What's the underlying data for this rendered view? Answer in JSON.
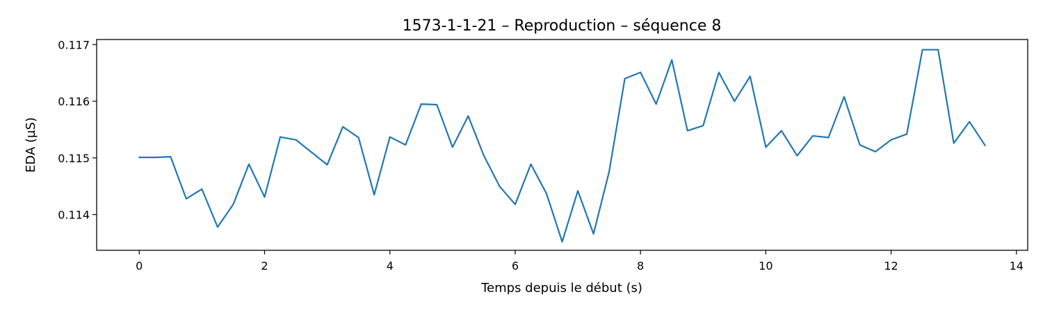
{
  "chart_data": {
    "type": "line",
    "title": "1573-1-1-21 – Reproduction – séquence 8",
    "xlabel": "Temps depuis le début (s)",
    "ylabel": "EDA (µS)",
    "xlim": [
      -0.68,
      14.18
    ],
    "ylim": [
      0.11337,
      0.11709
    ],
    "xticks": [
      0,
      2,
      4,
      6,
      8,
      10,
      12,
      14
    ],
    "xtick_labels": [
      "0",
      "2",
      "4",
      "6",
      "8",
      "10",
      "12",
      "14"
    ],
    "yticks": [
      0.114,
      0.115,
      0.116,
      0.117
    ],
    "ytick_labels": [
      "0.114",
      "0.115",
      "0.116",
      "0.117"
    ],
    "grid": false,
    "series": [
      {
        "color": "#1f77b4",
        "x": [
          0,
          0.25,
          0.5,
          0.75,
          1,
          1.25,
          1.5,
          1.75,
          2,
          2.25,
          2.5,
          2.75,
          3,
          3.25,
          3.5,
          3.75,
          4,
          4.25,
          4.5,
          4.75,
          5,
          5.25,
          5.5,
          5.75,
          6,
          6.25,
          6.5,
          6.75,
          7,
          7.25,
          7.5,
          7.75,
          8,
          8.25,
          8.5,
          8.75,
          9,
          9.25,
          9.5,
          9.75,
          10,
          10.25,
          10.5,
          10.75,
          11,
          11.25,
          11.5,
          11.75,
          12,
          12.25,
          12.5,
          12.75,
          13,
          13.25,
          13.5
        ],
        "y": [
          0.11501,
          0.11501,
          0.11502,
          0.11428,
          0.11445,
          0.11378,
          0.11418,
          0.11489,
          0.11431,
          0.11537,
          0.11532,
          0.1151,
          0.11488,
          0.11555,
          0.11536,
          0.11435,
          0.11537,
          0.11523,
          0.11595,
          0.11594,
          0.11519,
          0.11574,
          0.11504,
          0.1145,
          0.11418,
          0.11489,
          0.11437,
          0.11352,
          0.11442,
          0.11366,
          0.11476,
          0.1164,
          0.11651,
          0.11595,
          0.11673,
          0.11548,
          0.11557,
          0.11651,
          0.116,
          0.11644,
          0.11519,
          0.11548,
          0.11504,
          0.11539,
          0.11536,
          0.11608,
          0.11523,
          0.11511,
          0.11532,
          0.11542,
          0.11691,
          0.11691,
          0.11526,
          0.11564,
          0.11522
        ]
      }
    ]
  }
}
